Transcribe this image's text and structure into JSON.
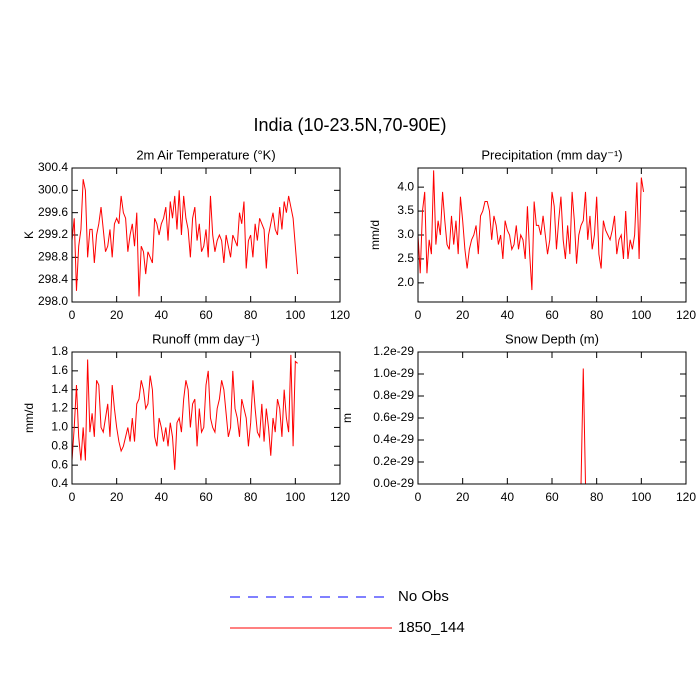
{
  "title": "India (10-23.5N,70-90E)",
  "legend": [
    {
      "name": "No Obs",
      "color": "#0000ff",
      "dash": true
    },
    {
      "name": "1850_144",
      "color": "#ff0000",
      "dash": false
    }
  ],
  "chart_data": [
    {
      "type": "line",
      "title": "2m Air Temperature (°K)",
      "ylabel": "K",
      "color": "#ff0000",
      "x": [
        0,
        1,
        2,
        3,
        4,
        5,
        6,
        7,
        8,
        9,
        10,
        11,
        12,
        13,
        14,
        15,
        16,
        17,
        18,
        19,
        20,
        21,
        22,
        23,
        24,
        25,
        26,
        27,
        28,
        29,
        30,
        31,
        32,
        33,
        34,
        35,
        36,
        37,
        38,
        39,
        40,
        41,
        42,
        43,
        44,
        45,
        46,
        47,
        48,
        49,
        50,
        51,
        52,
        53,
        54,
        55,
        56,
        57,
        58,
        59,
        60,
        61,
        62,
        63,
        64,
        65,
        66,
        67,
        68,
        69,
        70,
        71,
        72,
        73,
        74,
        75,
        76,
        77,
        78,
        79,
        80,
        81,
        82,
        83,
        84,
        85,
        86,
        87,
        88,
        89,
        90,
        91,
        92,
        93,
        94,
        95,
        96,
        97,
        98,
        99,
        100,
        101
      ],
      "values": [
        299.1,
        299.5,
        298.2,
        299.0,
        299.3,
        300.2,
        300.0,
        298.8,
        299.3,
        299.3,
        298.7,
        299.2,
        299.4,
        299.7,
        299.3,
        298.9,
        299.0,
        299.3,
        298.8,
        299.4,
        299.5,
        299.4,
        299.9,
        299.6,
        299.5,
        298.9,
        299.2,
        299.4,
        299.0,
        299.6,
        298.1,
        299.0,
        298.9,
        298.5,
        298.9,
        298.8,
        298.7,
        299.5,
        299.4,
        299.2,
        299.4,
        299.5,
        299.7,
        299.1,
        299.8,
        299.5,
        299.9,
        299.3,
        300.0,
        299.2,
        299.9,
        299.5,
        299.3,
        298.8,
        299.5,
        299.7,
        299.1,
        299.4,
        298.9,
        299.0,
        299.3,
        298.8,
        299.9,
        299.2,
        298.9,
        299.1,
        299.2,
        299.1,
        298.7,
        299.2,
        299.0,
        298.8,
        299.2,
        299.1,
        299.0,
        299.6,
        299.4,
        299.8,
        298.6,
        299.1,
        299.2,
        298.8,
        299.4,
        299.1,
        299.5,
        299.4,
        299.3,
        298.6,
        299.2,
        299.4,
        299.6,
        299.3,
        299.2,
        299.7,
        299.3,
        299.8,
        299.6,
        299.9,
        299.7,
        299.5,
        299.0,
        298.5
      ],
      "xlim": [
        0,
        120
      ],
      "xticks": [
        0,
        20,
        40,
        60,
        80,
        100,
        120
      ],
      "ylim": [
        298,
        300.4
      ],
      "yticks": [
        {
          "value": 298,
          "label": "298.0"
        },
        298.4,
        298.8,
        299.2,
        299.6,
        {
          "value": 300,
          "label": "300.0"
        },
        300.4
      ]
    },
    {
      "type": "line",
      "title": "Precipitation (mm day⁻¹)",
      "ylabel": "mm/d",
      "color": "#ff0000",
      "x": [
        0,
        1,
        2,
        3,
        4,
        5,
        6,
        7,
        8,
        9,
        10,
        11,
        12,
        13,
        14,
        15,
        16,
        17,
        18,
        19,
        20,
        21,
        22,
        23,
        24,
        25,
        26,
        27,
        28,
        29,
        30,
        31,
        32,
        33,
        34,
        35,
        36,
        37,
        38,
        39,
        40,
        41,
        42,
        43,
        44,
        45,
        46,
        47,
        48,
        49,
        50,
        51,
        52,
        53,
        54,
        55,
        56,
        57,
        58,
        59,
        60,
        61,
        62,
        63,
        64,
        65,
        66,
        67,
        68,
        69,
        70,
        71,
        72,
        73,
        74,
        75,
        76,
        77,
        78,
        79,
        80,
        81,
        82,
        83,
        84,
        85,
        86,
        87,
        88,
        89,
        90,
        91,
        92,
        93,
        94,
        95,
        96,
        97,
        98,
        99,
        100,
        101
      ],
      "values": [
        3.0,
        2.2,
        3.5,
        3.9,
        2.2,
        2.9,
        2.6,
        4.35,
        2.8,
        3.3,
        3.0,
        3.9,
        3.3,
        2.8,
        2.7,
        3.4,
        2.8,
        3.3,
        2.6,
        3.8,
        3.3,
        2.7,
        2.3,
        2.7,
        2.9,
        3.0,
        3.2,
        2.6,
        3.4,
        3.5,
        3.7,
        3.7,
        3.5,
        2.9,
        3.4,
        3.2,
        2.8,
        3.0,
        2.5,
        3.3,
        3.1,
        3.0,
        2.7,
        2.8,
        3.2,
        2.7,
        3.0,
        2.9,
        2.5,
        3.6,
        2.6,
        1.85,
        3.7,
        3.2,
        3.2,
        3.0,
        3.4,
        3.0,
        2.6,
        2.9,
        3.9,
        3.6,
        2.7,
        3.3,
        3.8,
        2.9,
        2.5,
        3.2,
        2.6,
        3.9,
        3.3,
        2.4,
        3.0,
        3.2,
        3.3,
        3.9,
        2.9,
        3.4,
        2.7,
        3.0,
        3.8,
        2.6,
        2.3,
        3.3,
        3.1,
        3.0,
        2.9,
        3.1,
        3.4,
        2.6,
        2.9,
        3.0,
        2.5,
        3.5,
        2.5,
        2.9,
        2.7,
        3.0,
        4.1,
        2.5,
        4.2,
        3.9
      ],
      "xlim": [
        0,
        120
      ],
      "xticks": [
        0,
        20,
        40,
        60,
        80,
        100,
        120
      ],
      "ylim": [
        1.6,
        4.4
      ],
      "yticks": [
        {
          "value": 2,
          "label": "2.0"
        },
        2.5,
        {
          "value": 3,
          "label": "3.0"
        },
        3.5,
        {
          "value": 4,
          "label": "4.0"
        }
      ]
    },
    {
      "type": "line",
      "title": "Runoff (mm day⁻¹)",
      "ylabel": "mm/d",
      "color": "#ff0000",
      "x": [
        0,
        1,
        2,
        3,
        4,
        5,
        6,
        7,
        8,
        9,
        10,
        11,
        12,
        13,
        14,
        15,
        16,
        17,
        18,
        19,
        20,
        21,
        22,
        23,
        24,
        25,
        26,
        27,
        28,
        29,
        30,
        31,
        32,
        33,
        34,
        35,
        36,
        37,
        38,
        39,
        40,
        41,
        42,
        43,
        44,
        45,
        46,
        47,
        48,
        49,
        50,
        51,
        52,
        53,
        54,
        55,
        56,
        57,
        58,
        59,
        60,
        61,
        62,
        63,
        64,
        65,
        66,
        67,
        68,
        69,
        70,
        71,
        72,
        73,
        74,
        75,
        76,
        77,
        78,
        79,
        80,
        81,
        82,
        83,
        84,
        85,
        86,
        87,
        88,
        89,
        90,
        91,
        92,
        93,
        94,
        95,
        96,
        97,
        98,
        99,
        100,
        101
      ],
      "values": [
        0.65,
        1.0,
        1.45,
        0.9,
        0.65,
        1.0,
        0.65,
        1.72,
        0.95,
        1.15,
        0.9,
        1.5,
        1.45,
        1.0,
        0.95,
        1.1,
        1.25,
        0.9,
        1.45,
        1.2,
        1.0,
        0.85,
        0.75,
        0.8,
        0.9,
        1.0,
        0.85,
        1.1,
        0.85,
        1.25,
        1.3,
        1.5,
        1.4,
        1.2,
        1.25,
        1.55,
        1.4,
        0.9,
        0.8,
        1.1,
        1.0,
        0.85,
        1.0,
        0.8,
        1.05,
        0.9,
        0.55,
        1.05,
        1.1,
        0.95,
        1.3,
        1.5,
        1.4,
        1.0,
        1.25,
        1.3,
        0.8,
        1.2,
        0.95,
        1.0,
        1.45,
        1.6,
        1.1,
        1.0,
        0.95,
        1.2,
        1.3,
        1.5,
        1.4,
        1.15,
        0.9,
        1.0,
        1.6,
        1.2,
        1.1,
        0.9,
        1.3,
        1.2,
        1.1,
        0.8,
        1.05,
        1.5,
        1.2,
        0.95,
        0.9,
        1.25,
        0.85,
        1.2,
        1.0,
        0.7,
        1.1,
        0.95,
        1.3,
        1.2,
        0.9,
        1.4,
        1.1,
        0.95,
        1.77,
        0.8,
        1.7,
        1.68
      ],
      "xlim": [
        0,
        120
      ],
      "xticks": [
        0,
        20,
        40,
        60,
        80,
        100,
        120
      ],
      "ylim": [
        0.4,
        1.8
      ],
      "yticks": [
        0.4,
        0.6,
        0.8,
        {
          "value": 1,
          "label": "1.0"
        },
        1.2,
        1.4,
        1.6,
        1.8
      ]
    },
    {
      "type": "line",
      "title": "Snow Depth (m)",
      "ylabel": "m",
      "color": "#ff0000",
      "x": [
        0,
        1,
        2,
        3,
        4,
        5,
        6,
        7,
        8,
        9,
        10,
        11,
        12,
        13,
        14,
        15,
        16,
        17,
        18,
        19,
        20,
        21,
        22,
        23,
        24,
        25,
        26,
        27,
        28,
        29,
        30,
        31,
        32,
        33,
        34,
        35,
        36,
        37,
        38,
        39,
        40,
        41,
        42,
        43,
        44,
        45,
        46,
        47,
        48,
        49,
        50,
        51,
        52,
        53,
        54,
        55,
        56,
        57,
        58,
        59,
        60,
        61,
        62,
        63,
        64,
        65,
        66,
        67,
        68,
        69,
        70,
        71,
        72,
        73,
        74,
        75,
        76,
        77,
        78,
        79,
        80,
        81,
        82,
        83,
        84,
        85,
        86,
        87,
        88,
        89,
        90,
        91,
        92,
        93,
        94,
        95,
        96,
        97,
        98,
        99,
        100,
        101
      ],
      "values": [
        0,
        0,
        0,
        0,
        0,
        0,
        0,
        0,
        0,
        0,
        0,
        0,
        0,
        0,
        0,
        0,
        0,
        0,
        0,
        0,
        0,
        0,
        0,
        0,
        0,
        0,
        0,
        0,
        0,
        0,
        0,
        0,
        0,
        0,
        0,
        0,
        0,
        0,
        0,
        0,
        0,
        0,
        0,
        0,
        0,
        0,
        0,
        0,
        0,
        0,
        0,
        0,
        0,
        0,
        0,
        0,
        0,
        0,
        0,
        0,
        0,
        0,
        0,
        0,
        0,
        0,
        0,
        0,
        0,
        0,
        0,
        0,
        0,
        0,
        1.05e-29,
        0,
        0,
        0,
        0,
        0,
        0,
        0,
        0,
        0,
        0,
        0,
        0,
        0,
        0,
        0,
        0,
        0,
        0,
        0,
        0,
        0,
        0,
        0,
        0,
        0,
        0,
        0
      ],
      "xlim": [
        0,
        120
      ],
      "xticks": [
        0,
        20,
        40,
        60,
        80,
        100,
        120
      ],
      "ylim": [
        0,
        1.2e-29
      ],
      "yticks": [
        {
          "value": 0,
          "label": "0.0e-29"
        },
        {
          "value": 2e-30,
          "label": "0.2e-29"
        },
        {
          "value": 4e-30,
          "label": "0.4e-29"
        },
        {
          "value": 6e-30,
          "label": "0.6e-29"
        },
        {
          "value": 8e-30,
          "label": "0.8e-29"
        },
        {
          "value": 1e-29,
          "label": "1.0e-29"
        },
        {
          "value": 1.2e-29,
          "label": "1.2e-29"
        }
      ]
    }
  ]
}
